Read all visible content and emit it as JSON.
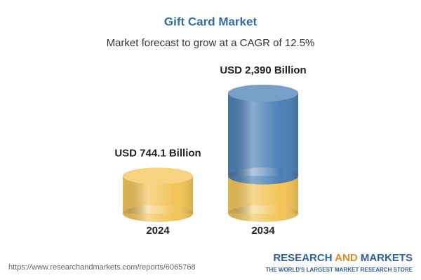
{
  "chart_data": {
    "type": "bar",
    "title": "Gift Card Market",
    "subtitle": "Market forecast to grow at a CAGR of 12.5%",
    "categories": [
      "2024",
      "2034"
    ],
    "values": [
      744.1,
      2390
    ],
    "value_labels": [
      "USD 744.1 Billion",
      "USD 2,390 Billion"
    ],
    "colors": [
      "#f2c457",
      "#4b7fb6"
    ]
  },
  "footer": {
    "url": "https://www.researchandmarkets.com/reports/6065768",
    "logo": [
      "RESEARCH",
      "AND",
      "MARKETS"
    ],
    "tagline": "THE WORLD'S LARGEST MARKET RESEARCH STORE"
  }
}
